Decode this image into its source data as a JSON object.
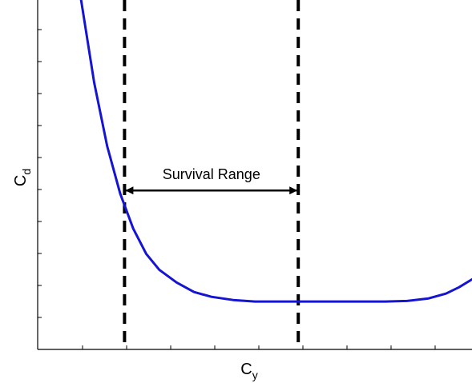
{
  "chart_data": {
    "type": "line",
    "title": "",
    "xlabel": {
      "main": "C",
      "sub": "y"
    },
    "ylabel": {
      "main": "C",
      "sub": "d"
    },
    "x_tick_labels": "none",
    "y_tick_labels": "none",
    "xlim": [
      0,
      1
    ],
    "ylim": [
      0,
      1
    ],
    "grid": false,
    "legend": "none",
    "series": [
      {
        "color": "#1414d2",
        "x": [
          0.1,
          0.13,
          0.16,
          0.19,
          0.22,
          0.25,
          0.28,
          0.32,
          0.36,
          0.4,
          0.45,
          0.5,
          0.55,
          0.6,
          0.65,
          0.7,
          0.75,
          0.8,
          0.85,
          0.9,
          0.94,
          0.97,
          1.0
        ],
        "y": [
          1.0,
          0.74,
          0.54,
          0.39,
          0.28,
          0.2,
          0.15,
          0.11,
          0.08,
          0.065,
          0.055,
          0.05,
          0.05,
          0.05,
          0.05,
          0.05,
          0.05,
          0.05,
          0.052,
          0.06,
          0.075,
          0.095,
          0.12
        ]
      }
    ],
    "reference_lines": [
      {
        "orientation": "vertical",
        "x": 0.2,
        "style": "dashed",
        "color": "#000000"
      },
      {
        "orientation": "vertical",
        "x": 0.6,
        "style": "dashed",
        "color": "#000000"
      }
    ],
    "annotation": {
      "text": "Survival Range",
      "arrow_from_x": 0.2,
      "arrow_to_x": 0.6,
      "arrow_y": 0.4
    }
  }
}
